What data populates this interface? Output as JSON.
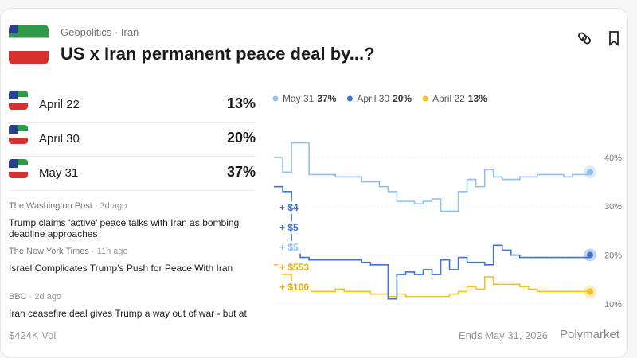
{
  "header": {
    "category": "Geopolitics",
    "tag": "Iran",
    "title": "US x Iran permanent peace deal by...?"
  },
  "outcomes": [
    {
      "name": "April 22",
      "value": "13%"
    },
    {
      "name": "April 30",
      "value": "20%"
    },
    {
      "name": "May 31",
      "value": "37%"
    }
  ],
  "news": [
    {
      "source": "The Washington Post",
      "time": "3d ago",
      "headline": "Trump claims ‘active’ peace talks with Iran as bombing deadline approaches"
    },
    {
      "source": "The New York Times",
      "time": "11h ago",
      "headline": "Israel Complicates Trump’s Push for Peace With Iran"
    },
    {
      "source": "BBC",
      "time": "2d ago",
      "headline": "Iran ceasefire deal gives Trump a way out of war - but at"
    }
  ],
  "footer": {
    "volume": "$424K Vol",
    "ends": "Ends May 31, 2026",
    "brand": "Polymarket"
  },
  "chart_data": {
    "type": "line",
    "series": [
      {
        "name": "May 31",
        "legend_value": "37%",
        "color": "#8fc0ef",
        "values": [
          40,
          37,
          43,
          43,
          36.5,
          36.5,
          36.5,
          36,
          36,
          36,
          35,
          35,
          34,
          33,
          31,
          31,
          30.5,
          31,
          31.5,
          29,
          29,
          33,
          35.5,
          34,
          37.5,
          36,
          35.5,
          35.5,
          36,
          36,
          36.5,
          36.5,
          36.5,
          36,
          36.5,
          36.5,
          37
        ]
      },
      {
        "name": "April 30",
        "legend_value": "20%",
        "color": "#3d72d9",
        "values": [
          34,
          33,
          21,
          19.5,
          19,
          19,
          19,
          19,
          19,
          19,
          18.5,
          18,
          18,
          11,
          16,
          16.5,
          16,
          17,
          16,
          19,
          17,
          19.5,
          18.5,
          18.5,
          18,
          22,
          21,
          20,
          19.5,
          19.5,
          19.5,
          19.5,
          19.5,
          19.5,
          19.5,
          19.5,
          20
        ]
      },
      {
        "name": "April 22",
        "legend_value": "13%",
        "color": "#f3c31c",
        "values": [
          18,
          16,
          12.5,
          12.5,
          12.5,
          12.5,
          12.5,
          13,
          12.5,
          12.5,
          12.5,
          12,
          12,
          11.5,
          12,
          11.5,
          11.5,
          11.5,
          11.5,
          11.5,
          12,
          12.5,
          13.5,
          13,
          15.5,
          14,
          14,
          14,
          13.5,
          13,
          12.5,
          12.5,
          12.5,
          12.5,
          12.5,
          12.5,
          12.5
        ]
      }
    ],
    "ylim": [
      8.5,
      44.4
    ],
    "yticks": [
      {
        "value": 10,
        "label": "10%"
      },
      {
        "value": 20,
        "label": "20%"
      },
      {
        "value": 30,
        "label": "30%"
      },
      {
        "value": 40,
        "label": "40%"
      }
    ],
    "annotations": [
      {
        "text": "+ $4",
        "color": "#3d72d9"
      },
      {
        "text": "+ $5",
        "color": "#3d72d9"
      },
      {
        "text": "+ $5",
        "color": "#8fc0ef"
      },
      {
        "text": "+ $553",
        "color": "#e2b000"
      },
      {
        "text": "+ $100",
        "color": "#e2b000"
      }
    ]
  }
}
